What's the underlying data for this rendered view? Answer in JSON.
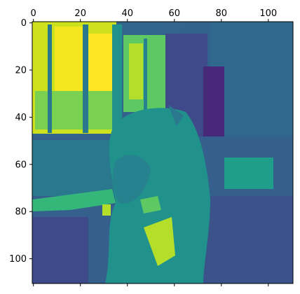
{
  "chart_data": {
    "type": "heatmap",
    "title": "",
    "xlabel": "",
    "ylabel": "",
    "colormap": "viridis",
    "image_description_rows": 111,
    "image_description_cols": 111,
    "xlim": [
      -0.5,
      110.5
    ],
    "ylim": [
      110.5,
      -0.5
    ],
    "x_axis_position": "top",
    "x_ticks": [
      0,
      20,
      40,
      60,
      80,
      100
    ],
    "x_tick_labels": [
      "0",
      "20",
      "40",
      "60",
      "80",
      "100"
    ],
    "y_ticks": [
      0,
      20,
      40,
      60,
      80,
      100
    ],
    "y_tick_labels": [
      "0",
      "20",
      "40",
      "60",
      "80",
      "100"
    ],
    "grid": false,
    "legend": "none"
  },
  "colors": {
    "viridis_dark": "#440154",
    "viridis_blue": "#31688e",
    "viridis_teal": "#21918c",
    "viridis_green": "#5ec962",
    "viridis_yellow": "#fde725"
  }
}
